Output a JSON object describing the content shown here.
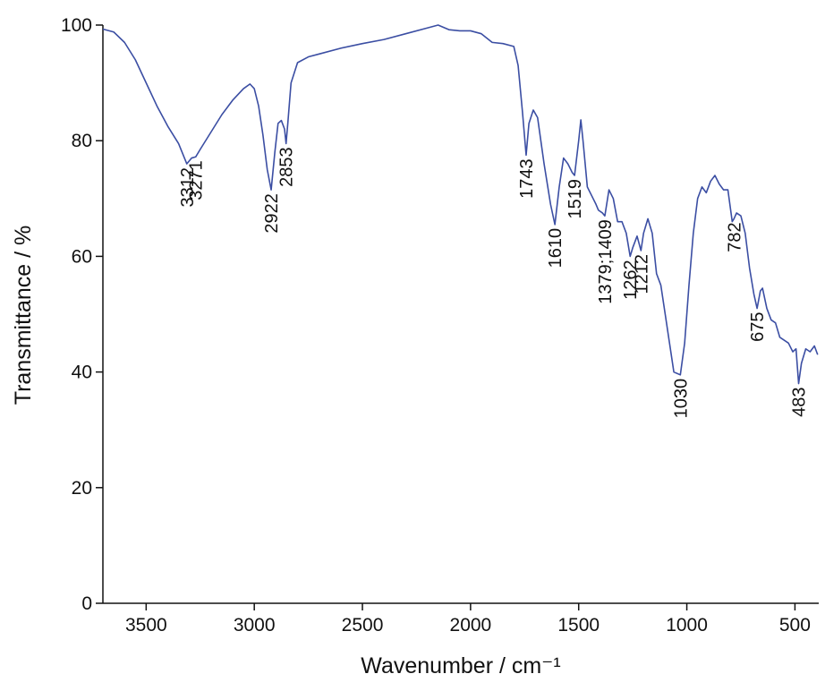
{
  "chart_data": {
    "type": "line",
    "x_label": "Wavenumber / cm⁻¹",
    "y_label": "Transmittance / %",
    "xlim": [
      3700,
      390
    ],
    "ylim": [
      0,
      100
    ],
    "xticks": [
      3500,
      3000,
      2500,
      2000,
      1500,
      1000,
      500
    ],
    "yticks": [
      0,
      20,
      40,
      60,
      80,
      100
    ],
    "x_reversed": true,
    "series": [
      {
        "name": "spectrum",
        "color": "#3b4ea3",
        "x": [
          3700,
          3650,
          3600,
          3550,
          3500,
          3450,
          3400,
          3350,
          3312,
          3290,
          3271,
          3250,
          3200,
          3150,
          3100,
          3050,
          3020,
          3000,
          2980,
          2960,
          2940,
          2922,
          2905,
          2890,
          2875,
          2860,
          2853,
          2845,
          2830,
          2800,
          2750,
          2700,
          2600,
          2500,
          2400,
          2300,
          2200,
          2150,
          2100,
          2050,
          2000,
          1950,
          1900,
          1850,
          1800,
          1780,
          1760,
          1743,
          1730,
          1710,
          1690,
          1660,
          1630,
          1610,
          1590,
          1570,
          1550,
          1530,
          1519,
          1500,
          1490,
          1480,
          1460,
          1440,
          1420,
          1409,
          1390,
          1379,
          1360,
          1340,
          1320,
          1300,
          1280,
          1262,
          1250,
          1230,
          1212,
          1200,
          1180,
          1160,
          1140,
          1120,
          1100,
          1080,
          1060,
          1030,
          1010,
          990,
          970,
          950,
          930,
          910,
          890,
          870,
          850,
          830,
          810,
          790,
          782,
          770,
          750,
          730,
          710,
          690,
          675,
          660,
          650,
          630,
          610,
          590,
          570,
          550,
          530,
          510,
          495,
          483,
          470,
          450,
          430,
          410,
          395
        ],
        "values": [
          99.3,
          98.8,
          97,
          94,
          90,
          86,
          82.5,
          79.5,
          76,
          77,
          77.2,
          78.5,
          81.5,
          84.5,
          87,
          89,
          89.8,
          89,
          86,
          81,
          75,
          71.5,
          78,
          83,
          83.5,
          82,
          79.5,
          83,
          90,
          93.5,
          94.5,
          95,
          96,
          96.8,
          97.5,
          98.5,
          99.5,
          100,
          99.2,
          99,
          99,
          98.5,
          97,
          96.8,
          96.3,
          93,
          85,
          77.5,
          83,
          85.3,
          84,
          76,
          69,
          65.5,
          72,
          77,
          76,
          74.5,
          74,
          80,
          83.6,
          80,
          72,
          70.5,
          69,
          68,
          67.5,
          67,
          71.5,
          70,
          66,
          66,
          64,
          60,
          61.5,
          63.5,
          61,
          64,
          66.5,
          64,
          57,
          55,
          50,
          45,
          40,
          39.5,
          45,
          55,
          64,
          70,
          72,
          71,
          73,
          74,
          72.5,
          71.5,
          71.5,
          66,
          66.5,
          67.5,
          67,
          64,
          58,
          53.5,
          51,
          54,
          54.5,
          51,
          49,
          48.5,
          46,
          45.5,
          45,
          43.5,
          44,
          38,
          41.5,
          44,
          43.5,
          44.5,
          43
        ]
      }
    ],
    "annotations": [
      {
        "text": "3312",
        "x": 3312,
        "y": 76
      },
      {
        "text": "3271",
        "x": 3271,
        "y": 77.2
      },
      {
        "text": "2922",
        "x": 2922,
        "y": 71.5
      },
      {
        "text": "2853",
        "x": 2853,
        "y": 79.5
      },
      {
        "text": "1743",
        "x": 1743,
        "y": 77.5
      },
      {
        "text": "1610",
        "x": 1610,
        "y": 65.5
      },
      {
        "text": "1519",
        "x": 1519,
        "y": 74
      },
      {
        "text": "1379;1409",
        "x": 1379,
        "y": 67
      },
      {
        "text": "1262",
        "x": 1262,
        "y": 60
      },
      {
        "text": "1212",
        "x": 1212,
        "y": 61
      },
      {
        "text": "1030",
        "x": 1030,
        "y": 39.5
      },
      {
        "text": "782",
        "x": 782,
        "y": 66.5
      },
      {
        "text": "675",
        "x": 675,
        "y": 51
      },
      {
        "text": "483",
        "x": 483,
        "y": 38
      }
    ]
  }
}
